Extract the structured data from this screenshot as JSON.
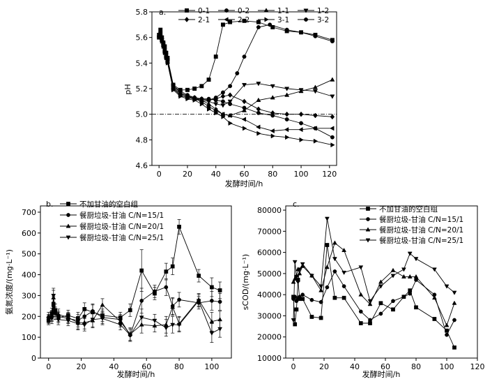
{
  "chart_data": [
    {
      "type": "line",
      "panel_label": "a.",
      "xlabel": "发酵时间/h",
      "ylabel": "pH",
      "xlim": [
        -5,
        125
      ],
      "ylim": [
        4.6,
        5.8
      ],
      "xticks": [
        0,
        20,
        40,
        60,
        80,
        100,
        120
      ],
      "yticks": [
        4.6,
        4.8,
        5.0,
        5.2,
        5.4,
        5.6,
        5.8
      ],
      "reference_line": 5.0,
      "legend_position": "top",
      "series": [
        {
          "name": "0-1",
          "marker": "square",
          "x": [
            0,
            1,
            2,
            3,
            4,
            5,
            6,
            10,
            15,
            20,
            25,
            30,
            35,
            40,
            45,
            50,
            60,
            70,
            80,
            90,
            100,
            110,
            122
          ],
          "y": [
            5.62,
            5.66,
            5.6,
            5.56,
            5.53,
            5.48,
            5.44,
            5.23,
            5.19,
            5.19,
            5.2,
            5.22,
            5.27,
            5.45,
            5.7,
            5.72,
            5.73,
            5.72,
            5.68,
            5.65,
            5.64,
            5.62,
            5.58
          ]
        },
        {
          "name": "0-2",
          "marker": "circle",
          "x": [
            0,
            1,
            2,
            3,
            4,
            5,
            6,
            10,
            15,
            20,
            25,
            30,
            35,
            40,
            45,
            50,
            55,
            60,
            70,
            78,
            90,
            100,
            110,
            122
          ],
          "y": [
            5.6,
            5.63,
            5.58,
            5.55,
            5.5,
            5.45,
            5.42,
            5.22,
            5.18,
            5.15,
            5.13,
            5.12,
            5.11,
            5.13,
            5.17,
            5.22,
            5.32,
            5.45,
            5.68,
            5.7,
            5.66,
            5.64,
            5.61,
            5.57
          ]
        },
        {
          "name": "1-1",
          "marker": "triangle-up",
          "x": [
            0,
            1,
            2,
            3,
            4,
            5,
            6,
            10,
            15,
            20,
            25,
            30,
            35,
            40,
            45,
            50,
            60,
            70,
            80,
            90,
            100,
            110,
            122
          ],
          "y": [
            5.6,
            5.62,
            5.58,
            5.54,
            5.49,
            5.45,
            5.41,
            5.2,
            5.15,
            5.13,
            5.12,
            5.11,
            5.08,
            5.04,
            5.0,
            4.99,
            5.03,
            5.11,
            5.13,
            5.15,
            5.18,
            5.21,
            5.27
          ]
        },
        {
          "name": "1-2",
          "marker": "triangle-down",
          "x": [
            0,
            1,
            2,
            3,
            4,
            5,
            6,
            10,
            15,
            20,
            25,
            30,
            35,
            40,
            45,
            50,
            60,
            70,
            80,
            90,
            100,
            110,
            122
          ],
          "y": [
            5.6,
            5.63,
            5.58,
            5.55,
            5.5,
            5.46,
            5.42,
            5.22,
            5.17,
            5.14,
            5.12,
            5.11,
            5.1,
            5.08,
            5.07,
            5.1,
            5.23,
            5.24,
            5.22,
            5.2,
            5.19,
            5.18,
            5.14
          ]
        },
        {
          "name": "2-1",
          "marker": "diamond",
          "x": [
            0,
            1,
            2,
            3,
            4,
            5,
            6,
            10,
            15,
            20,
            25,
            30,
            35,
            40,
            45,
            50,
            60,
            70,
            80,
            90,
            100,
            110,
            122
          ],
          "y": [
            5.61,
            5.63,
            5.59,
            5.55,
            5.5,
            5.46,
            5.42,
            5.21,
            5.16,
            5.14,
            5.13,
            5.12,
            5.11,
            5.12,
            5.14,
            5.15,
            5.1,
            5.04,
            5.01,
            5.0,
            5.0,
            4.99,
            4.98
          ]
        },
        {
          "name": "2-2",
          "marker": "triangle-left",
          "x": [
            0,
            1,
            2,
            3,
            4,
            5,
            6,
            10,
            15,
            20,
            25,
            30,
            35,
            40,
            45,
            50,
            60,
            70,
            80,
            90,
            100,
            110,
            122
          ],
          "y": [
            5.6,
            5.62,
            5.58,
            5.54,
            5.49,
            5.45,
            5.41,
            5.2,
            5.15,
            5.13,
            5.12,
            5.1,
            5.06,
            5.03,
            5.0,
            4.99,
            4.96,
            4.9,
            4.87,
            4.88,
            4.88,
            4.89,
            4.89
          ]
        },
        {
          "name": "3-1",
          "marker": "triangle-right",
          "x": [
            0,
            1,
            2,
            3,
            4,
            5,
            6,
            10,
            15,
            20,
            25,
            30,
            35,
            40,
            45,
            50,
            60,
            70,
            80,
            90,
            100,
            110,
            122
          ],
          "y": [
            5.6,
            5.62,
            5.57,
            5.53,
            5.48,
            5.44,
            5.4,
            5.19,
            5.14,
            5.12,
            5.11,
            5.08,
            5.04,
            5.01,
            4.98,
            4.93,
            4.89,
            4.85,
            4.83,
            4.82,
            4.8,
            4.79,
            4.76
          ]
        },
        {
          "name": "3-2",
          "marker": "circle",
          "x": [
            0,
            1,
            2,
            3,
            4,
            5,
            6,
            10,
            15,
            20,
            25,
            30,
            35,
            40,
            45,
            50,
            60,
            70,
            80,
            90,
            100,
            110,
            122
          ],
          "y": [
            5.6,
            5.63,
            5.58,
            5.54,
            5.49,
            5.45,
            5.41,
            5.2,
            5.15,
            5.13,
            5.12,
            5.12,
            5.12,
            5.11,
            5.1,
            5.08,
            5.05,
            5.01,
            4.99,
            4.96,
            4.93,
            4.89,
            4.82
          ]
        }
      ]
    },
    {
      "type": "line",
      "panel_label": "b.",
      "xlabel": "发酵时间/h",
      "ylabel": "氨氮浓度/(mg·L⁻¹)",
      "xlim": [
        -5,
        112
      ],
      "ylim": [
        0,
        730
      ],
      "xticks": [
        0,
        20,
        40,
        60,
        80,
        100
      ],
      "yticks": [
        0,
        100,
        200,
        300,
        400,
        500,
        600,
        700
      ],
      "legend_position": "top-right",
      "error_bars": true,
      "series": [
        {
          "name": "不加甘油的空白组",
          "marker": "square",
          "x": [
            0,
            2,
            3,
            4,
            6,
            12,
            18,
            22,
            27,
            33,
            44,
            50,
            57,
            65,
            72,
            76,
            80,
            92,
            100,
            105
          ],
          "y": [
            180,
            215,
            260,
            230,
            195,
            205,
            190,
            235,
            220,
            205,
            195,
            230,
            420,
            310,
            415,
            440,
            630,
            395,
            340,
            325
          ],
          "err": [
            20,
            25,
            35,
            30,
            25,
            25,
            30,
            30,
            35,
            30,
            25,
            30,
            100,
            30,
            40,
            40,
            35,
            30,
            45,
            40
          ]
        },
        {
          "name": "餐厨垃圾-甘油 C/N=15/1",
          "marker": "circle",
          "x": [
            0,
            2,
            3,
            4,
            6,
            12,
            18,
            22,
            27,
            33,
            44,
            50,
            57,
            65,
            72,
            76,
            80,
            92,
            100,
            105
          ],
          "y": [
            185,
            200,
            250,
            215,
            200,
            190,
            180,
            200,
            225,
            195,
            185,
            110,
            275,
            320,
            340,
            250,
            280,
            265,
            275,
            270
          ],
          "err": [
            20,
            25,
            35,
            30,
            25,
            25,
            30,
            30,
            35,
            30,
            25,
            30,
            60,
            30,
            40,
            40,
            35,
            30,
            45,
            40
          ]
        },
        {
          "name": "餐厨垃圾-甘油 C/N=20/1",
          "marker": "triangle-up",
          "x": [
            0,
            2,
            3,
            4,
            6,
            12,
            18,
            22,
            27,
            33,
            44,
            50,
            57,
            65,
            72,
            76,
            80,
            92,
            100,
            105
          ],
          "y": [
            200,
            205,
            290,
            230,
            210,
            195,
            170,
            170,
            180,
            255,
            175,
            115,
            160,
            155,
            160,
            245,
            165,
            280,
            175,
            185
          ],
          "err": [
            20,
            25,
            35,
            30,
            25,
            25,
            30,
            30,
            35,
            30,
            25,
            30,
            40,
            30,
            40,
            40,
            35,
            30,
            45,
            40
          ]
        },
        {
          "name": "餐厨垃圾-甘油 C/N=25/1",
          "marker": "triangle-down",
          "x": [
            0,
            2,
            3,
            4,
            6,
            12,
            18,
            22,
            27,
            33,
            44,
            50,
            57,
            65,
            72,
            76,
            80,
            92,
            100,
            105
          ],
          "y": [
            190,
            190,
            300,
            215,
            185,
            180,
            165,
            160,
            185,
            190,
            160,
            110,
            195,
            180,
            145,
            160,
            160,
            275,
            120,
            140
          ],
          "err": [
            20,
            25,
            35,
            30,
            25,
            25,
            30,
            30,
            35,
            30,
            25,
            30,
            40,
            30,
            40,
            40,
            35,
            30,
            45,
            40
          ]
        }
      ]
    },
    {
      "type": "line",
      "panel_label": "c.",
      "xlabel": "发酵时间/h",
      "ylabel": "sCOD/(mg·L⁻¹)",
      "xlim": [
        -5,
        120
      ],
      "ylim": [
        10000,
        82000
      ],
      "xticks": [
        0,
        20,
        40,
        60,
        80,
        100,
        120
      ],
      "yticks": [
        10000,
        20000,
        30000,
        40000,
        50000,
        60000,
        70000,
        80000
      ],
      "legend_position": "top-right",
      "series": [
        {
          "name": "不加甘油的空白组",
          "marker": "square",
          "x": [
            0,
            1,
            2,
            3,
            4,
            6,
            12,
            18,
            22,
            27,
            33,
            44,
            50,
            57,
            65,
            72,
            76,
            80,
            92,
            100,
            105
          ],
          "y": [
            39000,
            26000,
            33000,
            47000,
            38000,
            38000,
            29500,
            29000,
            63500,
            38500,
            38500,
            26500,
            26500,
            36000,
            33000,
            39000,
            42000,
            34000,
            28500,
            23000,
            15000
          ]
        },
        {
          "name": "餐厨垃圾-甘油 C/N=15/1",
          "marker": "circle",
          "x": [
            0,
            1,
            2,
            3,
            4,
            6,
            12,
            18,
            22,
            27,
            33,
            44,
            50,
            57,
            65,
            72,
            76,
            80,
            92,
            100,
            105
          ],
          "y": [
            38000,
            39000,
            37000,
            38000,
            39000,
            40000,
            37500,
            36500,
            43500,
            51000,
            44000,
            32000,
            28000,
            31000,
            37000,
            39000,
            40500,
            47000,
            40000,
            21000,
            28000
          ]
        },
        {
          "name": "餐厨垃圾-甘油 C/N=20/1",
          "marker": "triangle-up",
          "x": [
            0,
            1,
            2,
            3,
            4,
            6,
            12,
            18,
            22,
            27,
            33,
            44,
            50,
            57,
            65,
            72,
            76,
            80,
            92,
            100,
            105
          ],
          "y": [
            46000,
            47500,
            49000,
            52000,
            50000,
            53500,
            49000,
            42000,
            53000,
            64500,
            61000,
            40000,
            35500,
            46000,
            51500,
            48500,
            48500,
            48500,
            38500,
            25500,
            36000
          ]
        },
        {
          "name": "餐厨垃圾-甘油 C/N=25/1",
          "marker": "triangle-down",
          "x": [
            0,
            1,
            2,
            3,
            4,
            6,
            12,
            18,
            22,
            27,
            33,
            44,
            50,
            57,
            65,
            72,
            76,
            80,
            92,
            100,
            105
          ],
          "y": [
            28000,
            55500,
            48500,
            46000,
            52000,
            54500,
            49000,
            44000,
            76000,
            57000,
            50500,
            53000,
            37000,
            44000,
            49000,
            52000,
            59500,
            57000,
            52000,
            44000,
            41000
          ]
        }
      ]
    }
  ]
}
